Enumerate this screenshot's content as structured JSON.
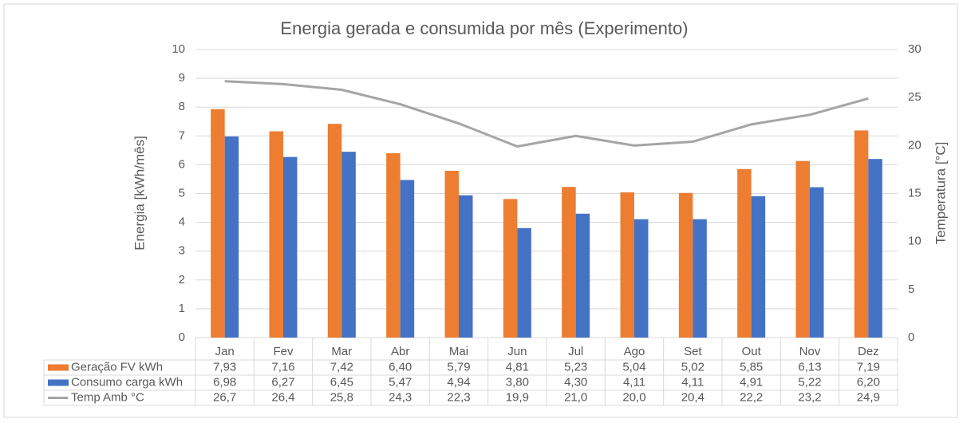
{
  "chart_data": {
    "type": "bar",
    "title": "Energia gerada e consumida por mês (Experimento)",
    "ylabel": "Energia [kWh/mês]",
    "y2label": "Temperatura [°C]",
    "categories": [
      "Jan",
      "Fev",
      "Mar",
      "Abr",
      "Mai",
      "Jun",
      "Jul",
      "Ago",
      "Set",
      "Out",
      "Nov",
      "Dez"
    ],
    "series": [
      {
        "name": "Geração FV kWh",
        "type": "bar",
        "color": "#ed7d31",
        "values": [
          7.93,
          7.16,
          7.42,
          6.4,
          5.79,
          4.81,
          5.23,
          5.04,
          5.02,
          5.85,
          6.13,
          7.19
        ],
        "value_labels": [
          "7,93",
          "7,16",
          "7,42",
          "6,40",
          "5,79",
          "4,81",
          "5,23",
          "5,04",
          "5,02",
          "5,85",
          "6,13",
          "7,19"
        ]
      },
      {
        "name": "Consumo carga kWh",
        "type": "bar",
        "color": "#4472c4",
        "values": [
          6.98,
          6.27,
          6.45,
          5.47,
          4.94,
          3.8,
          4.3,
          4.11,
          4.11,
          4.91,
          5.22,
          6.2
        ],
        "value_labels": [
          "6,98",
          "6,27",
          "6,45",
          "5,47",
          "4,94",
          "3,80",
          "4,30",
          "4,11",
          "4,11",
          "4,91",
          "5,22",
          "6,20"
        ]
      },
      {
        "name": "Temp Amb °C",
        "type": "line",
        "axis": "y2",
        "color": "#a5a5a5",
        "values": [
          26.7,
          26.4,
          25.8,
          24.3,
          22.3,
          19.9,
          21.0,
          20.0,
          20.4,
          22.2,
          23.2,
          24.9
        ],
        "value_labels": [
          "26,7",
          "26,4",
          "25,8",
          "24,3",
          "22,3",
          "19,9",
          "21,0",
          "20,0",
          "20,4",
          "22,2",
          "23,2",
          "24,9"
        ]
      }
    ],
    "ylim": [
      0,
      10
    ],
    "yticks": [
      0,
      1,
      2,
      3,
      4,
      5,
      6,
      7,
      8,
      9,
      10
    ],
    "y2lim": [
      0,
      30
    ],
    "y2ticks": [
      0,
      5,
      10,
      15,
      20,
      25,
      30
    ],
    "grid": true
  }
}
